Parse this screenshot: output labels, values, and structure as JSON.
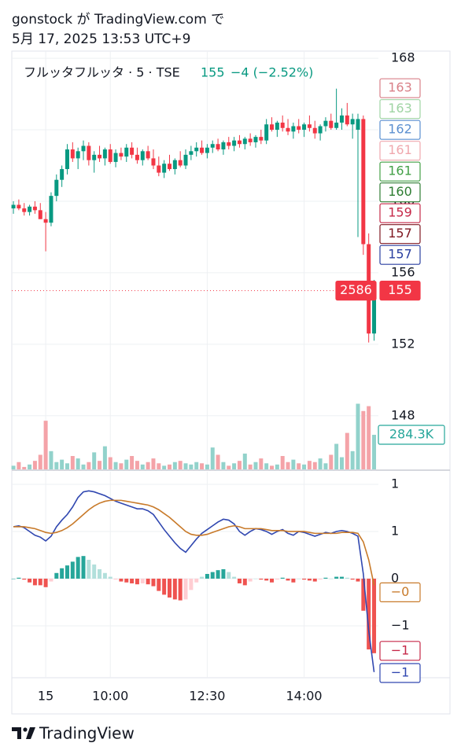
{
  "header": {
    "author_line": "gonstock が TradingView.com で",
    "date_line": "5月 17, 2025 13:53 UTC+9"
  },
  "footer": {
    "brand": "TradingView"
  },
  "chart_data": {
    "type": "candlestick",
    "legend_title": "フルッタフルッタ · 5 · TSE",
    "change_label": "−4 (−2.52%)",
    "up_color": "#089981",
    "down_color": "#f23645",
    "grid": true,
    "xlim": [
      -6.3,
      61.8
    ],
    "xticks": [
      {
        "value": 0,
        "label": "15"
      },
      {
        "value": 12,
        "label": "10:00"
      },
      {
        "value": 30,
        "label": "12:30"
      },
      {
        "value": 48,
        "label": "14:00"
      }
    ],
    "ylim": [
      145,
      168.4
    ],
    "yticks": [
      148,
      152,
      156,
      160,
      164,
      168
    ],
    "x": [
      -6,
      -5,
      -4,
      -3,
      -2,
      -1,
      0,
      1,
      2,
      3,
      4,
      5,
      6,
      7,
      8,
      9,
      10,
      11,
      12,
      13,
      14,
      15,
      16,
      17,
      18,
      19,
      20,
      21,
      22,
      23,
      24,
      25,
      26,
      27,
      28,
      29,
      30,
      31,
      32,
      33,
      34,
      35,
      36,
      37,
      38,
      39,
      40,
      41,
      42,
      43,
      44,
      45,
      46,
      47,
      48,
      49,
      50,
      51,
      52,
      53,
      54,
      55,
      56,
      57,
      58,
      59,
      60,
      61
    ],
    "ohlc": [
      [
        159.6,
        160.0,
        159.3,
        159.8
      ],
      [
        159.8,
        160.1,
        159.5,
        159.6
      ],
      [
        159.6,
        159.9,
        159.2,
        159.4
      ],
      [
        159.4,
        159.8,
        159.2,
        159.7
      ],
      [
        159.7,
        160.0,
        159.3,
        159.5
      ],
      [
        159.5,
        159.9,
        159.0,
        159.0
      ],
      [
        159.0,
        159.4,
        157.2,
        158.8
      ],
      [
        158.8,
        160.5,
        158.6,
        160.3
      ],
      [
        160.3,
        161.5,
        160.0,
        161.2
      ],
      [
        161.2,
        162.0,
        160.8,
        161.8
      ],
      [
        161.8,
        163.2,
        161.5,
        162.9
      ],
      [
        162.9,
        163.3,
        162.2,
        162.4
      ],
      [
        162.4,
        163.0,
        161.8,
        162.8
      ],
      [
        162.8,
        163.4,
        162.3,
        163.1
      ],
      [
        163.1,
        163.3,
        162.0,
        162.3
      ],
      [
        162.3,
        162.8,
        161.6,
        162.6
      ],
      [
        162.6,
        163.1,
        162.2,
        162.4
      ],
      [
        162.4,
        163.0,
        162.0,
        162.9
      ],
      [
        162.9,
        163.2,
        162.1,
        162.2
      ],
      [
        162.2,
        162.9,
        161.9,
        162.7
      ],
      [
        162.7,
        163.0,
        162.3,
        162.5
      ],
      [
        162.5,
        163.2,
        162.2,
        163.0
      ],
      [
        163.0,
        163.3,
        162.4,
        162.6
      ],
      [
        162.6,
        163.0,
        162.1,
        162.3
      ],
      [
        162.3,
        162.9,
        162.0,
        162.8
      ],
      [
        162.8,
        163.1,
        162.3,
        162.4
      ],
      [
        162.4,
        162.9,
        161.8,
        162.0
      ],
      [
        162.0,
        162.5,
        161.4,
        161.6
      ],
      [
        161.6,
        162.3,
        161.3,
        162.1
      ],
      [
        162.1,
        162.6,
        161.7,
        161.8
      ],
      [
        161.8,
        162.4,
        161.5,
        162.3
      ],
      [
        162.3,
        162.8,
        161.9,
        162.0
      ],
      [
        162.0,
        162.9,
        161.8,
        162.6
      ],
      [
        162.6,
        163.1,
        162.3,
        162.8
      ],
      [
        162.8,
        163.3,
        162.5,
        163.0
      ],
      [
        163.0,
        163.4,
        162.6,
        162.7
      ],
      [
        162.7,
        163.2,
        162.4,
        163.0
      ],
      [
        163.0,
        163.4,
        162.7,
        163.2
      ],
      [
        163.2,
        163.5,
        162.8,
        162.9
      ],
      [
        162.9,
        163.4,
        162.6,
        163.3
      ],
      [
        163.3,
        163.6,
        162.9,
        163.1
      ],
      [
        163.1,
        163.6,
        162.8,
        163.4
      ],
      [
        163.4,
        163.7,
        163.0,
        163.2
      ],
      [
        163.2,
        163.6,
        162.9,
        163.5
      ],
      [
        163.5,
        163.8,
        163.1,
        163.3
      ],
      [
        163.3,
        163.7,
        163.0,
        163.6
      ],
      [
        163.6,
        164.0,
        163.2,
        163.4
      ],
      [
        163.4,
        164.6,
        163.2,
        164.3
      ],
      [
        164.3,
        164.7,
        163.9,
        164.0
      ],
      [
        164.0,
        164.5,
        163.6,
        164.4
      ],
      [
        164.4,
        164.8,
        163.9,
        164.1
      ],
      [
        164.1,
        164.6,
        163.7,
        163.9
      ],
      [
        163.9,
        164.4,
        163.5,
        164.2
      ],
      [
        164.2,
        164.6,
        163.8,
        164.0
      ],
      [
        164.0,
        164.4,
        163.6,
        164.3
      ],
      [
        164.3,
        164.8,
        163.9,
        164.1
      ],
      [
        164.1,
        164.5,
        163.5,
        163.8
      ],
      [
        163.8,
        164.3,
        163.4,
        164.2
      ],
      [
        164.2,
        164.7,
        163.9,
        164.5
      ],
      [
        164.5,
        164.9,
        164.0,
        164.1
      ],
      [
        164.1,
        166.3,
        164.0,
        164.4
      ],
      [
        164.4,
        165.2,
        164.0,
        164.8
      ],
      [
        164.8,
        165.5,
        164.2,
        164.3
      ],
      [
        164.3,
        164.9,
        163.5,
        164.6
      ],
      [
        164.0,
        164.9,
        158.0,
        164.6
      ],
      [
        164.6,
        164.8,
        157.0,
        157.6
      ],
      [
        157.6,
        158.2,
        152.1,
        152.6
      ],
      [
        152.6,
        155.6,
        152.2,
        155
      ]
    ],
    "countdown": 2586,
    "price_tags": [
      {
        "value": 163,
        "color": "#d98088"
      },
      {
        "value": 163,
        "color": "#9fd4a3"
      },
      {
        "value": 162,
        "color": "#5b8fd0"
      },
      {
        "value": 161,
        "color": "#f0a8ae"
      },
      {
        "value": 161,
        "color": "#43a047"
      },
      {
        "value": 160,
        "color": "#2e7d32"
      },
      {
        "value": 159,
        "color": "#c62848"
      },
      {
        "value": 157,
        "color": "#801922"
      },
      {
        "value": 157,
        "color": "#2a3fa0"
      }
    ],
    "volume": {
      "ylim": [
        0,
        3440000
      ],
      "up_color": "#92d2cb",
      "down_color": "#f4a3a8",
      "last_label": "284.3K",
      "values": [
        30000,
        60000,
        20000,
        40000,
        70000,
        120000,
        400000,
        150000,
        60000,
        80000,
        50000,
        110000,
        90000,
        40000,
        60000,
        140000,
        70000,
        190000,
        100000,
        60000,
        50000,
        80000,
        110000,
        70000,
        40000,
        60000,
        90000,
        50000,
        30000,
        40000,
        60000,
        70000,
        50000,
        40000,
        60000,
        50000,
        40000,
        180000,
        120000,
        60000,
        30000,
        50000,
        70000,
        130000,
        40000,
        60000,
        90000,
        50000,
        30000,
        40000,
        110000,
        60000,
        80000,
        50000,
        40000,
        70000,
        60000,
        90000,
        50000,
        120000,
        210000,
        100000,
        300000,
        150000,
        540000,
        480000,
        520000,
        284300
      ]
    },
    "macd": {
      "ylim": [
        -1.05,
        1.133
      ],
      "yticks": [
        1,
        {
          "value": 0.5,
          "label": "1"
        },
        0,
        {
          "value": -0.5,
          "label": "−1"
        }
      ],
      "series": [
        {
          "color": "#3047b0",
          "last_label": "−1",
          "values": [
            0.55,
            0.56,
            0.54,
            0.5,
            0.46,
            0.44,
            0.4,
            0.45,
            0.55,
            0.62,
            0.68,
            0.76,
            0.86,
            0.92,
            0.93,
            0.92,
            0.9,
            0.88,
            0.85,
            0.82,
            0.8,
            0.78,
            0.76,
            0.74,
            0.74,
            0.72,
            0.68,
            0.6,
            0.52,
            0.45,
            0.38,
            0.32,
            0.28,
            0.35,
            0.42,
            0.48,
            0.52,
            0.56,
            0.6,
            0.63,
            0.62,
            0.58,
            0.5,
            0.46,
            0.5,
            0.53,
            0.52,
            0.5,
            0.47,
            0.5,
            0.52,
            0.48,
            0.46,
            0.5,
            0.49,
            0.47,
            0.45,
            0.47,
            0.49,
            0.48,
            0.5,
            0.51,
            0.5,
            0.48,
            0.45,
            0.05,
            -0.55,
            -0.99
          ]
        },
        {
          "color": "#c87a2a",
          "last_label": "−0",
          "values": [
            0.55,
            0.55,
            0.55,
            0.54,
            0.53,
            0.51,
            0.49,
            0.48,
            0.49,
            0.51,
            0.54,
            0.58,
            0.63,
            0.68,
            0.73,
            0.77,
            0.8,
            0.82,
            0.83,
            0.83,
            0.83,
            0.82,
            0.81,
            0.8,
            0.79,
            0.78,
            0.76,
            0.73,
            0.69,
            0.65,
            0.6,
            0.55,
            0.5,
            0.47,
            0.46,
            0.46,
            0.47,
            0.49,
            0.51,
            0.53,
            0.55,
            0.56,
            0.55,
            0.53,
            0.53,
            0.53,
            0.53,
            0.52,
            0.51,
            0.51,
            0.51,
            0.5,
            0.5,
            0.5,
            0.5,
            0.49,
            0.48,
            0.48,
            0.48,
            0.48,
            0.48,
            0.49,
            0.49,
            0.49,
            0.48,
            0.39,
            0.2,
            -0.07
          ]
        }
      ],
      "histogram": {
        "last_label": "−1",
        "up_color": "#26a69a",
        "up_fade_color": "#b2dfdb",
        "down_color": "#ef5350",
        "down_fade_color": "#ffcdd2",
        "values": [
          0,
          0.01,
          -0.01,
          -0.04,
          -0.07,
          -0.07,
          -0.09,
          -0.03,
          0.06,
          0.11,
          0.14,
          0.18,
          0.23,
          0.24,
          0.2,
          0.15,
          0.1,
          0.06,
          0.02,
          -0.01,
          -0.03,
          -0.04,
          -0.05,
          -0.06,
          -0.05,
          -0.06,
          -0.08,
          -0.13,
          -0.17,
          -0.2,
          -0.22,
          -0.23,
          -0.22,
          -0.12,
          -0.04,
          0.02,
          0.05,
          0.07,
          0.09,
          0.1,
          0.07,
          0.02,
          -0.05,
          -0.07,
          -0.03,
          0,
          -0.01,
          -0.02,
          -0.04,
          -0.01,
          0.01,
          -0.02,
          -0.04,
          0,
          -0.01,
          -0.02,
          -0.03,
          -0.01,
          0.01,
          0,
          0.02,
          0.02,
          0.01,
          -0.01,
          -0.03,
          -0.34,
          -0.75,
          -0.79
        ]
      }
    }
  }
}
